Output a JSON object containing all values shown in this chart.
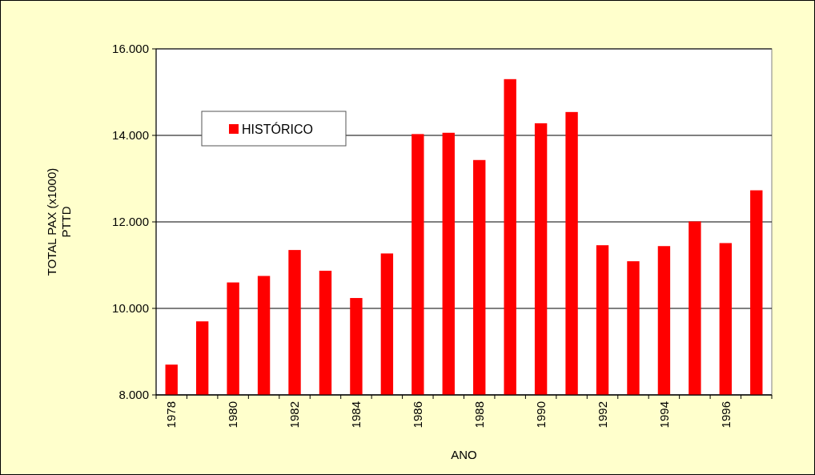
{
  "chart_data": {
    "type": "bar",
    "xlabel": "ANO",
    "ylabel": "TOTAL PAX (x1000)\nPTTD",
    "categories": [
      "1978",
      null,
      "1980",
      null,
      "1982",
      null,
      "1984",
      null,
      "1986",
      null,
      "1988",
      null,
      "1990",
      null,
      "1992",
      null,
      "1994",
      null,
      "1996",
      null
    ],
    "series": [
      {
        "name": "HISTÓRICO",
        "color": "#ff0000",
        "values": [
          8700,
          9700,
          10600,
          10750,
          11350,
          10870,
          10240,
          11270,
          14030,
          14060,
          13430,
          15300,
          14280,
          14540,
          11460,
          11090,
          11440,
          12010,
          11510,
          12730
        ]
      }
    ],
    "ylim": [
      8000,
      16000
    ],
    "yticks": [
      {
        "value": 8000,
        "label": "8.000"
      },
      {
        "value": 10000,
        "label": "10.000"
      },
      {
        "value": 12000,
        "label": "12.000"
      },
      {
        "value": 14000,
        "label": "14.000"
      },
      {
        "value": 16000,
        "label": "16.000"
      }
    ],
    "grid": "y",
    "legend": "top left"
  }
}
